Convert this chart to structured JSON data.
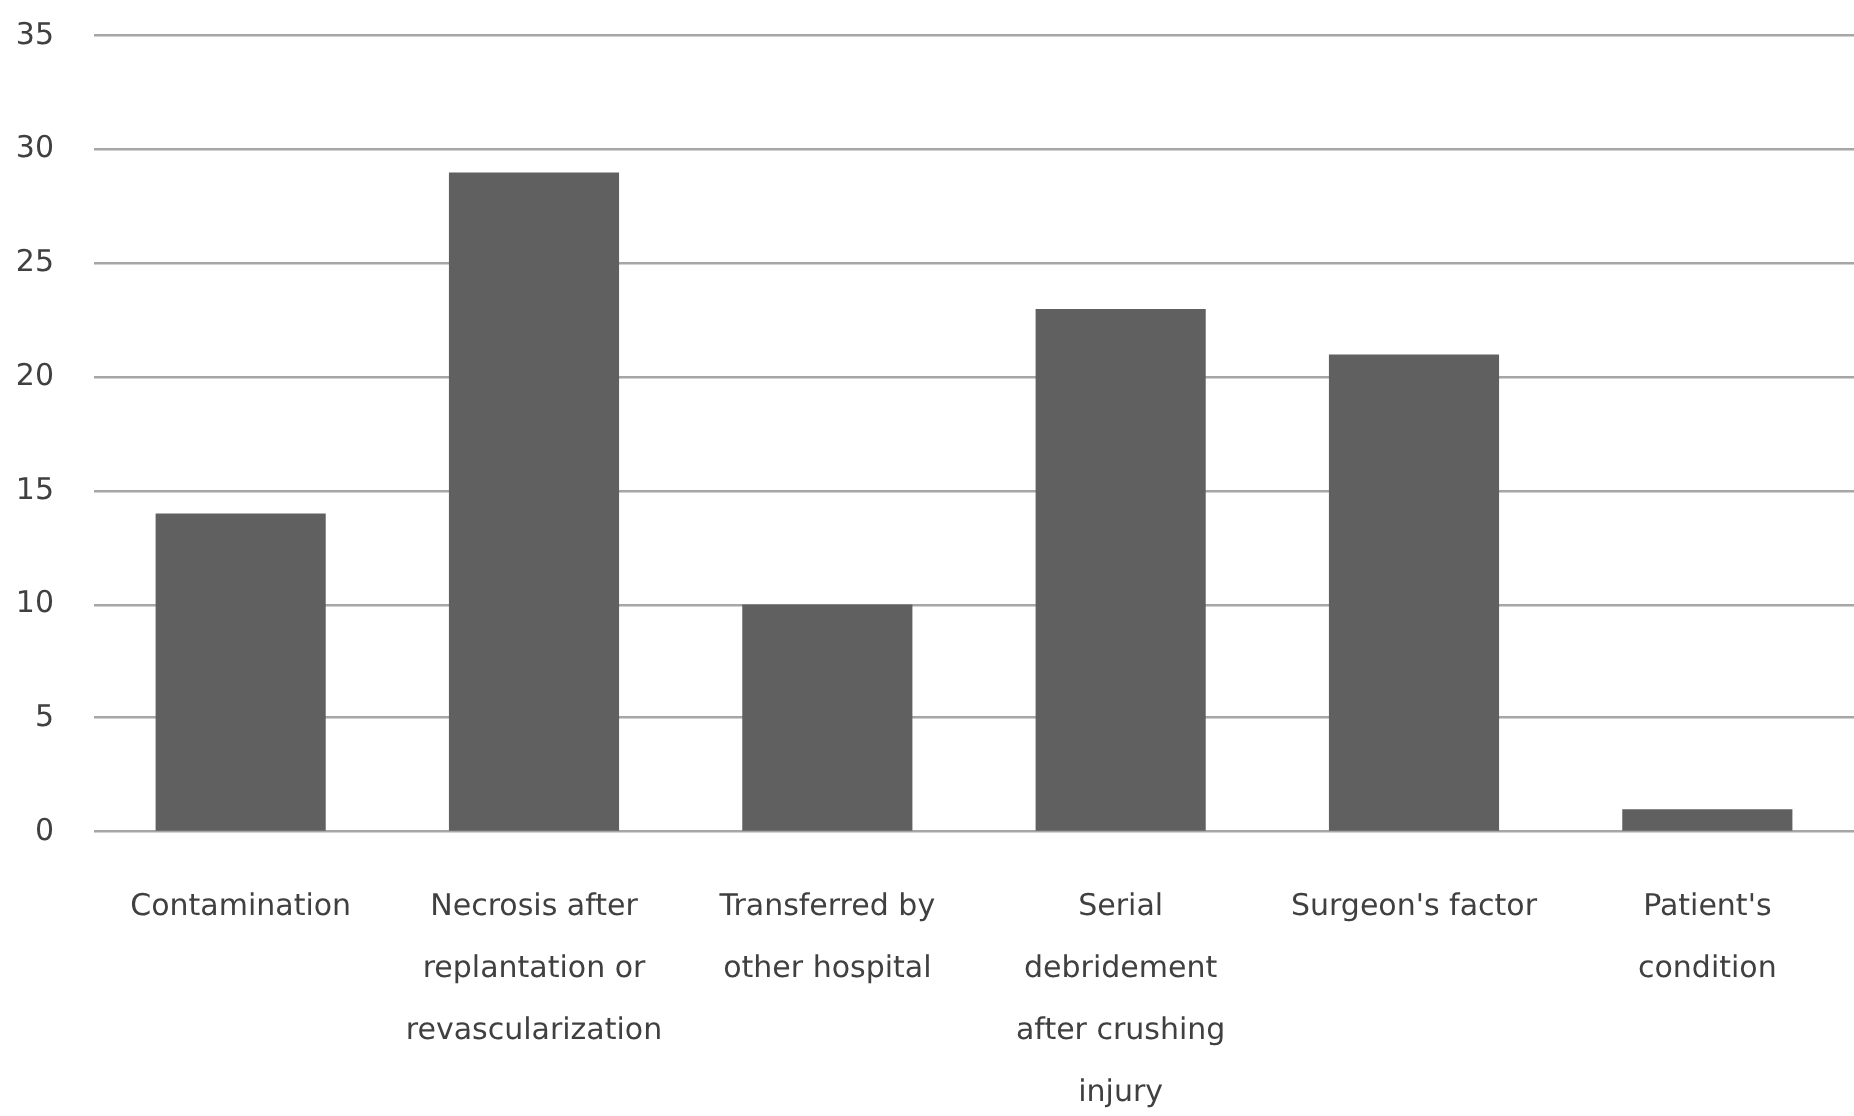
{
  "chart_data": {
    "type": "bar",
    "categories": [
      "Contamination",
      "Necrosis after replantation or revascularization",
      "Transferred by other hospital",
      "Serial debridement after crushing injury",
      "Surgeon's factor",
      "Patient's condition"
    ],
    "values": [
      14,
      29,
      10,
      23,
      21,
      1
    ],
    "color": "#606060",
    "ylim": [
      0,
      35
    ],
    "yticks": [
      0,
      5,
      10,
      15,
      20,
      25,
      30,
      35
    ],
    "grid": "y"
  }
}
